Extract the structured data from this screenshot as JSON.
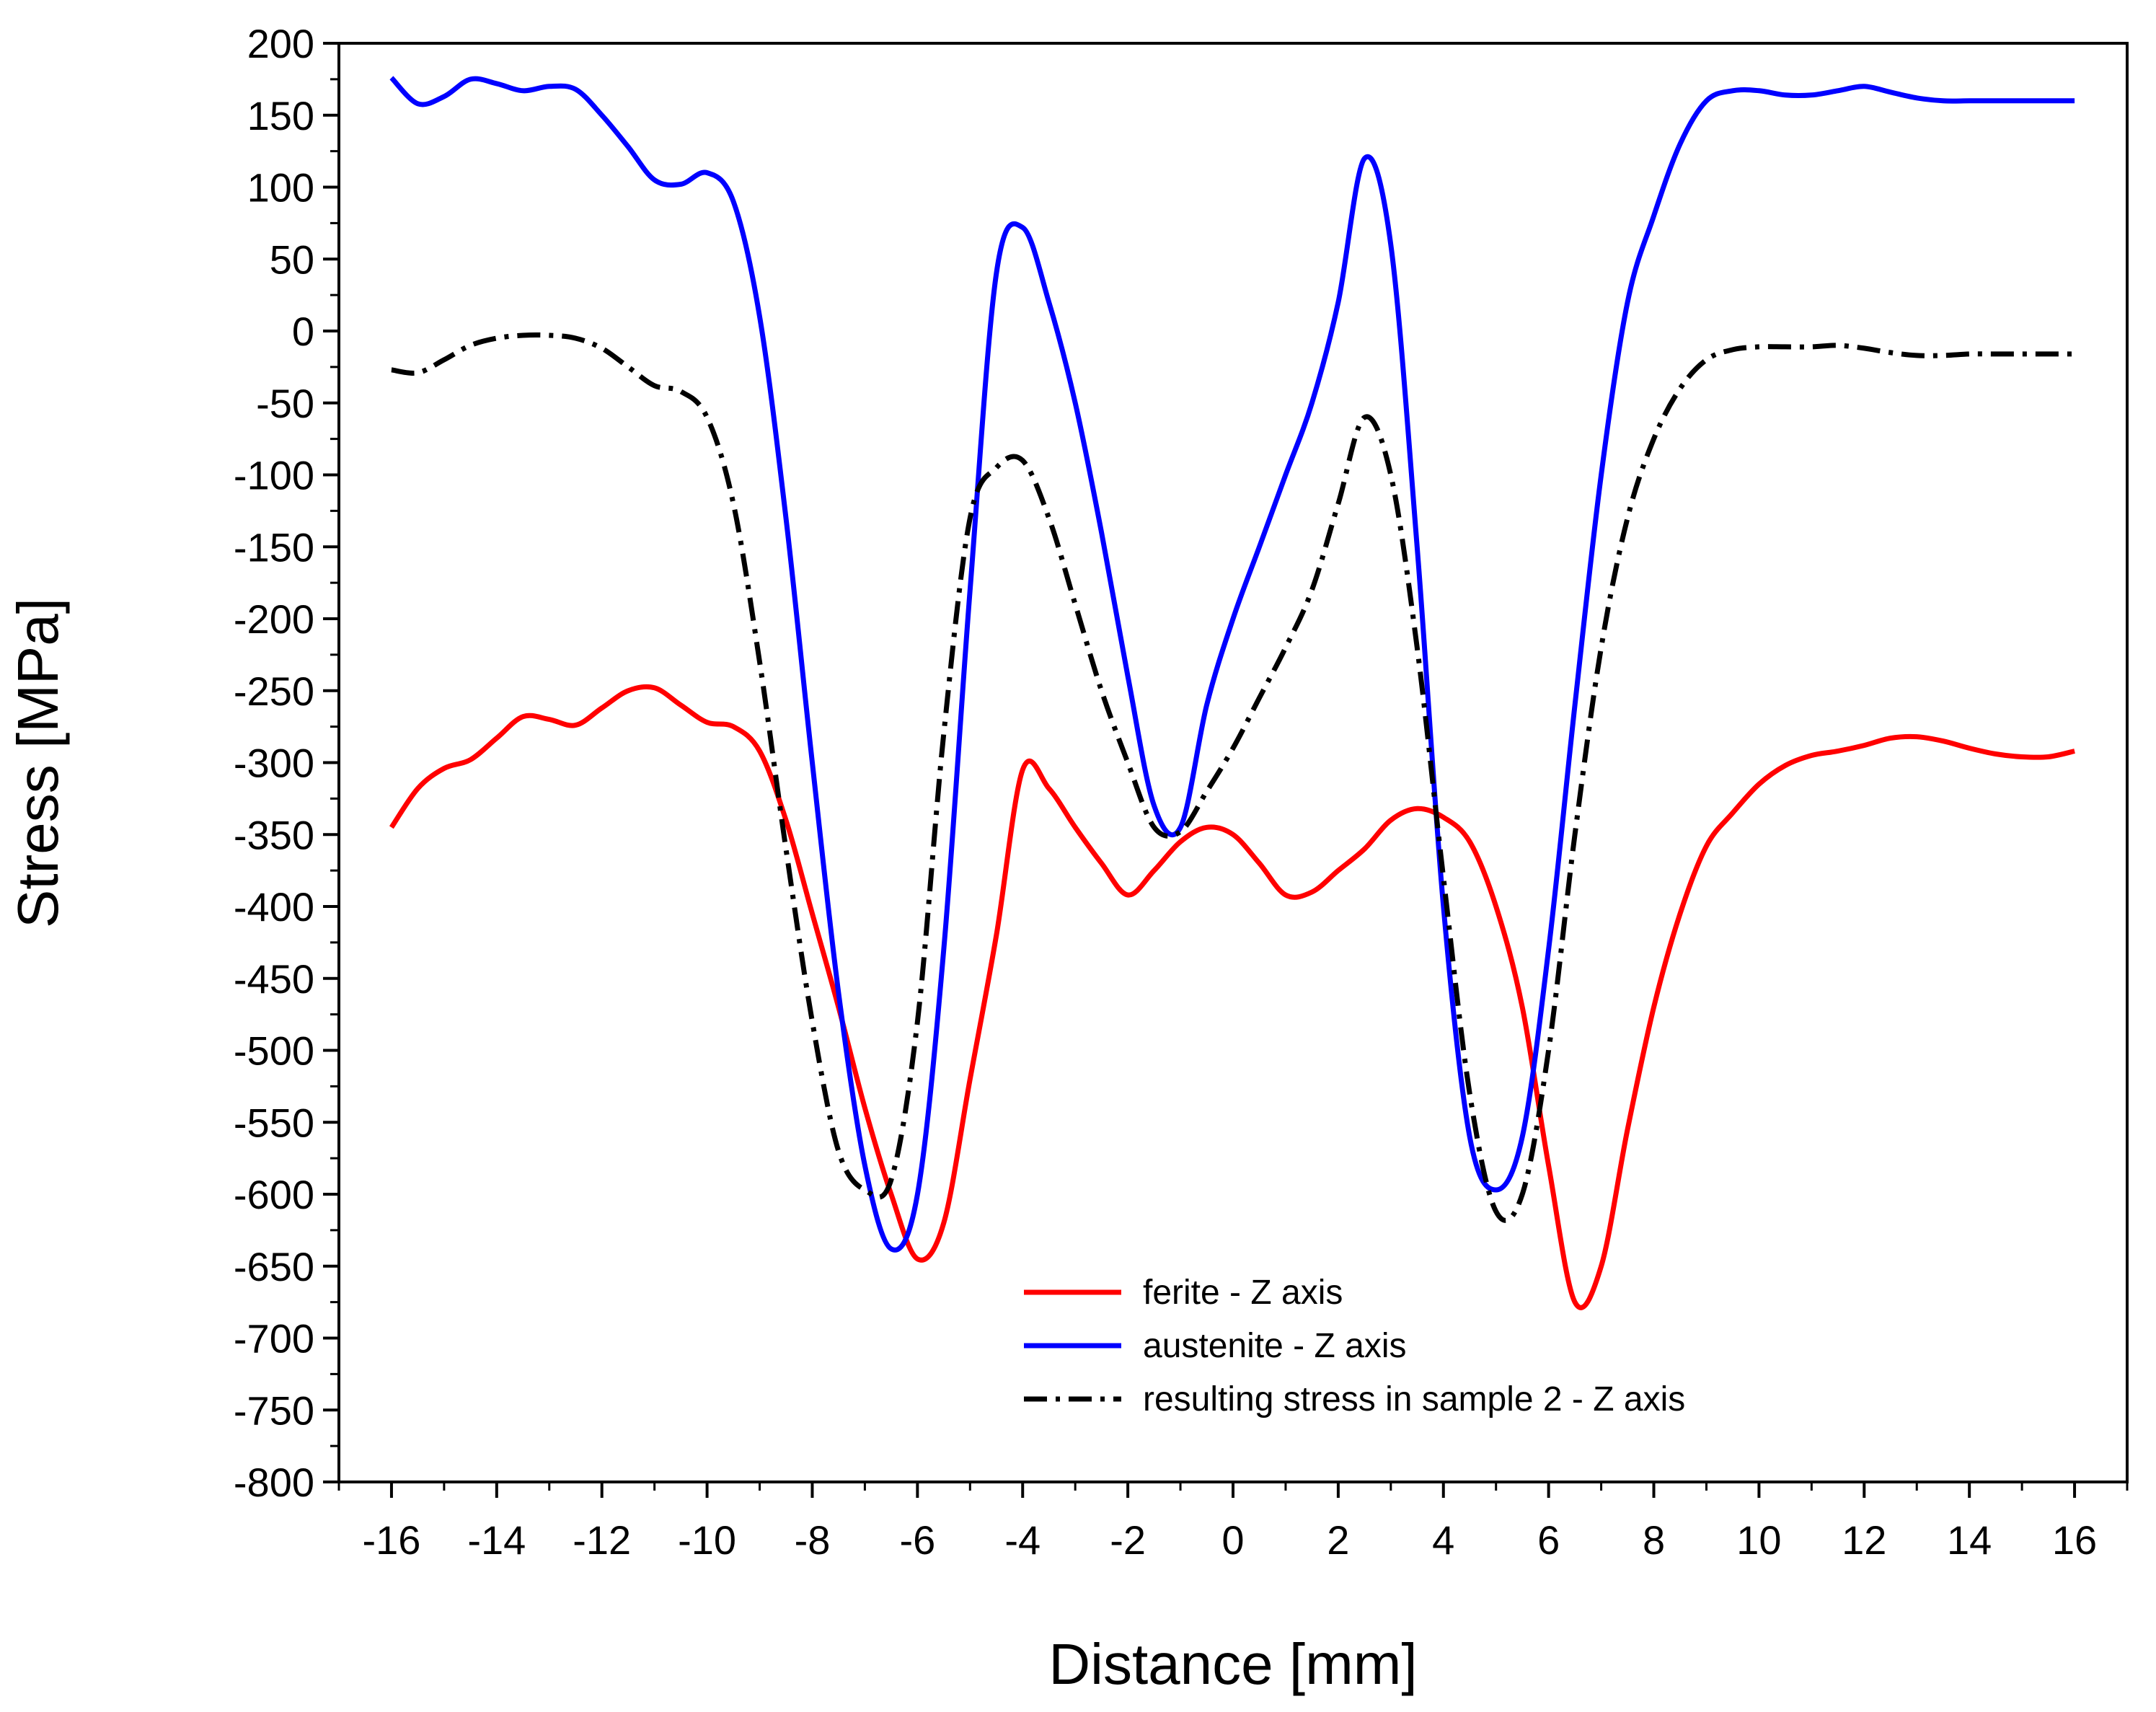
{
  "chart_data": {
    "type": "line",
    "title": "",
    "xlabel": "Distance [mm]",
    "ylabel": "Stress [MPa]",
    "xlim": [
      -17,
      17
    ],
    "ylim": [
      -800,
      200
    ],
    "xticks": [
      -16,
      -14,
      -12,
      -10,
      -8,
      -6,
      -4,
      -2,
      0,
      2,
      4,
      6,
      8,
      10,
      12,
      14,
      16
    ],
    "xtick_labels": [
      "-16",
      "-14",
      "-12",
      "-10",
      "-8",
      "-6",
      "-4",
      "-2",
      "0",
      "2",
      "4",
      "6",
      "8",
      "10",
      "12",
      "14",
      "16"
    ],
    "yticks": [
      -800,
      -750,
      -700,
      -650,
      -600,
      -550,
      -500,
      -450,
      -400,
      -350,
      -300,
      -250,
      -200,
      -150,
      -100,
      -50,
      0,
      50,
      100,
      150,
      200
    ],
    "ytick_labels": [
      "-800",
      "-750",
      "-700",
      "-650",
      "-600",
      "-550",
      "-500",
      "-450",
      "-400",
      "-350",
      "-300",
      "-250",
      "-200",
      "-150",
      "-100",
      "-50",
      "0",
      "50",
      "100",
      "150",
      "200"
    ],
    "grid": false,
    "legend_position": "bottom-center",
    "series": [
      {
        "name": "ferite - Z axis",
        "color": "#ff0000",
        "dash": "solid",
        "x": [
          -16,
          -15.5,
          -15,
          -14.5,
          -14,
          -13.5,
          -13,
          -12.5,
          -12,
          -11.5,
          -11,
          -10.5,
          -10,
          -9.5,
          -9,
          -8.5,
          -8,
          -7.5,
          -7,
          -6.5,
          -6,
          -5.5,
          -5,
          -4.5,
          -4,
          -3.5,
          -3,
          -2.5,
          -2,
          -1.5,
          -1,
          -0.5,
          0,
          0.5,
          1,
          1.5,
          2,
          2.5,
          3,
          3.5,
          4,
          4.5,
          5,
          5.5,
          6,
          6.5,
          7,
          7.5,
          8,
          8.5,
          9,
          9.5,
          10,
          10.5,
          11,
          11.5,
          12,
          12.5,
          13,
          13.5,
          14,
          14.5,
          15,
          15.5,
          16
        ],
        "y": [
          -345,
          -318,
          -304,
          -298,
          -283,
          -268,
          -270,
          -274,
          -262,
          -250,
          -248,
          -260,
          -272,
          -275,
          -292,
          -340,
          -405,
          -470,
          -540,
          -600,
          -645,
          -620,
          -520,
          -420,
          -305,
          -318,
          -345,
          -370,
          -392,
          -375,
          -355,
          -345,
          -350,
          -370,
          -392,
          -390,
          -375,
          -360,
          -340,
          -332,
          -338,
          -355,
          -400,
          -470,
          -580,
          -675,
          -650,
          -555,
          -470,
          -405,
          -358,
          -335,
          -315,
          -302,
          -295,
          -292,
          -288,
          -283,
          -282,
          -285,
          -290,
          -294,
          -296,
          -296,
          -292
        ]
      },
      {
        "name": "austenite - Z axis",
        "color": "#0000ff",
        "dash": "solid",
        "x": [
          -16,
          -15.5,
          -15,
          -14.5,
          -14,
          -13.5,
          -13,
          -12.5,
          -12,
          -11.5,
          -11,
          -10.5,
          -10,
          -9.5,
          -9,
          -8.5,
          -8,
          -7.5,
          -7,
          -6.5,
          -6,
          -5.5,
          -5,
          -4.5,
          -4,
          -3.5,
          -3,
          -2.5,
          -2,
          -1.5,
          -1,
          -0.5,
          0,
          0.5,
          1,
          1.5,
          2,
          2.5,
          3,
          3.5,
          4,
          4.5,
          5,
          5.5,
          6,
          6.5,
          7,
          7.5,
          8,
          8.5,
          9,
          9.5,
          10,
          10.5,
          11,
          11.5,
          12,
          12.5,
          13,
          13.5,
          14,
          14.5,
          15,
          15.5,
          16
        ],
        "y": [
          176,
          158,
          163,
          175,
          172,
          167,
          170,
          168,
          150,
          128,
          105,
          102,
          110,
          90,
          10,
          -130,
          -300,
          -460,
          -580,
          -638,
          -600,
          -430,
          -180,
          40,
          72,
          20,
          -50,
          -140,
          -240,
          -330,
          -345,
          -260,
          -200,
          -150,
          -100,
          -50,
          20,
          120,
          60,
          -150,
          -400,
          -560,
          -597,
          -560,
          -430,
          -260,
          -100,
          20,
          80,
          130,
          160,
          167,
          167,
          164,
          164,
          167,
          170,
          166,
          162,
          160,
          160,
          160,
          160,
          160,
          160
        ]
      },
      {
        "name": "resulting stress in sample 2 - Z axis",
        "color": "#000000",
        "dash": "dashdot",
        "x": [
          -16,
          -15.5,
          -15,
          -14.5,
          -14,
          -13.5,
          -13,
          -12.5,
          -12,
          -11.5,
          -11,
          -10.5,
          -10,
          -9.5,
          -9,
          -8.5,
          -8,
          -7.5,
          -7,
          -6.5,
          -6,
          -5.5,
          -5,
          -4.5,
          -4,
          -3.5,
          -3,
          -2.5,
          -2,
          -1.5,
          -1,
          -0.5,
          0,
          0.5,
          1,
          1.5,
          2,
          2.5,
          3,
          3.5,
          4,
          4.5,
          5,
          5.5,
          6,
          6.5,
          7,
          7.5,
          8,
          8.5,
          9,
          9.5,
          10,
          10.5,
          11,
          11.5,
          12,
          12.5,
          13,
          13.5,
          14,
          14.5,
          15,
          15.5,
          16
        ],
        "y": [
          -27,
          -29,
          -20,
          -10,
          -5,
          -3,
          -3,
          -5,
          -12,
          -25,
          -38,
          -42,
          -60,
          -120,
          -230,
          -360,
          -480,
          -570,
          -597,
          -590,
          -480,
          -280,
          -130,
          -95,
          -90,
          -130,
          -190,
          -250,
          -300,
          -345,
          -348,
          -320,
          -290,
          -255,
          -220,
          -180,
          -120,
          -60,
          -100,
          -220,
          -380,
          -530,
          -612,
          -600,
          -500,
          -350,
          -220,
          -130,
          -75,
          -40,
          -20,
          -13,
          -11,
          -11,
          -11,
          -10,
          -12,
          -15,
          -17,
          -17,
          -16,
          -16,
          -16,
          -16,
          -16
        ]
      }
    ]
  }
}
